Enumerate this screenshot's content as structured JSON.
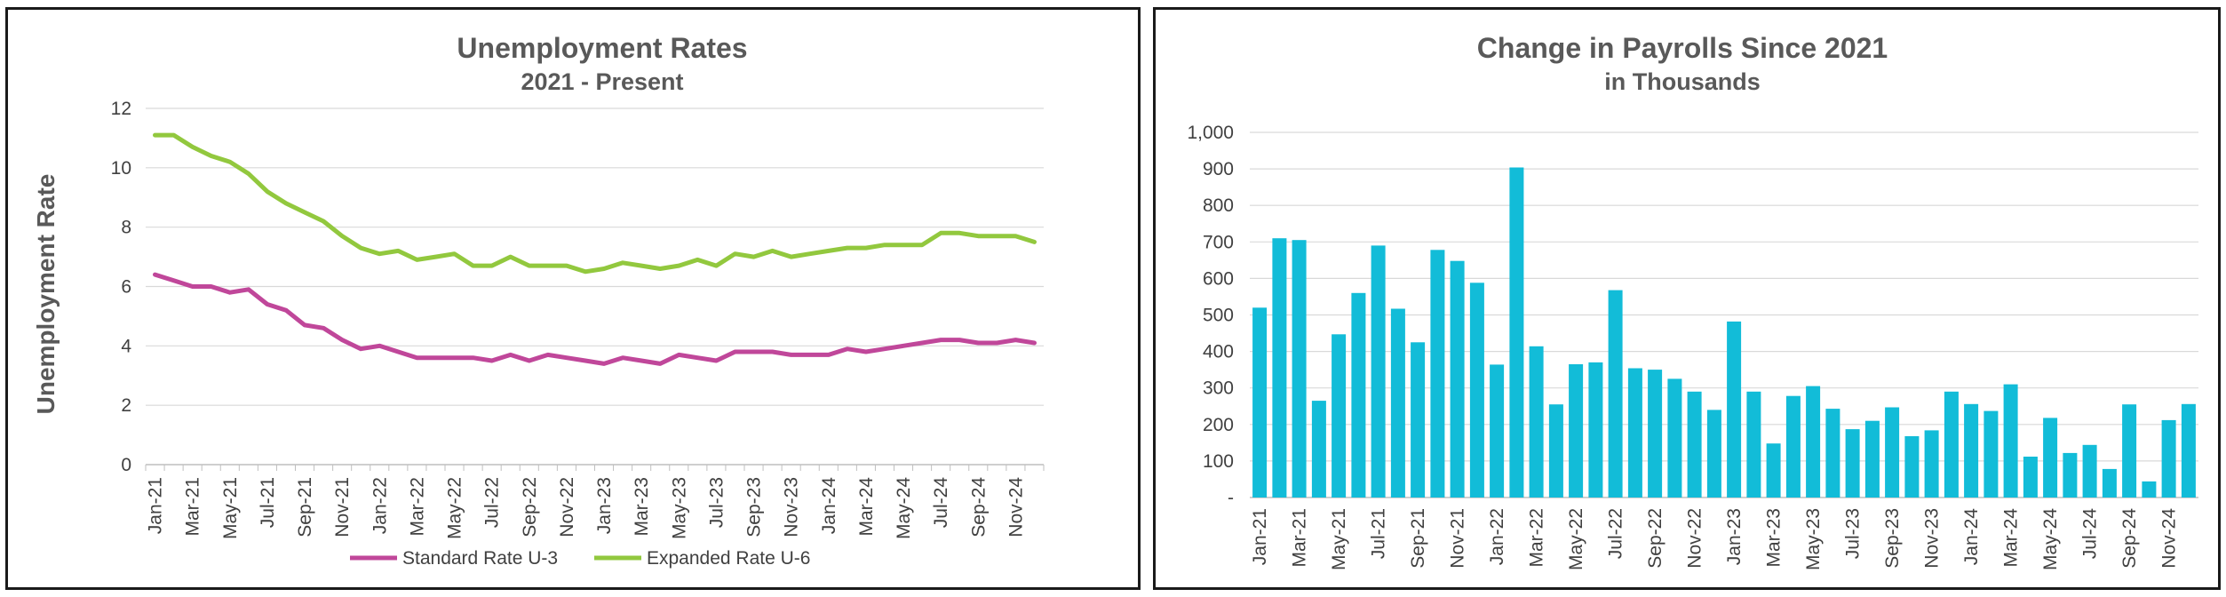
{
  "chart_data": [
    {
      "type": "line",
      "title": "Unemployment Rates",
      "subtitle": "2021 - Present",
      "ylabel": "Unemployment Rate",
      "ylim": [
        0,
        12
      ],
      "yticks": [
        "0",
        "2",
        "4",
        "6",
        "8",
        "10",
        "12"
      ],
      "x": [
        "Jan-21",
        "Feb-21",
        "Mar-21",
        "Apr-21",
        "May-21",
        "Jun-21",
        "Jul-21",
        "Aug-21",
        "Sep-21",
        "Oct-21",
        "Nov-21",
        "Dec-21",
        "Jan-22",
        "Feb-22",
        "Mar-22",
        "Apr-22",
        "May-22",
        "Jun-22",
        "Jul-22",
        "Aug-22",
        "Sep-22",
        "Oct-22",
        "Nov-22",
        "Dec-22",
        "Jan-23",
        "Feb-23",
        "Mar-23",
        "Apr-23",
        "May-23",
        "Jun-23",
        "Jul-23",
        "Aug-23",
        "Sep-23",
        "Oct-23",
        "Nov-23",
        "Dec-23",
        "Jan-24",
        "Feb-24",
        "Mar-24",
        "Apr-24",
        "May-24",
        "Jun-24",
        "Jul-24",
        "Aug-24",
        "Sep-24",
        "Oct-24",
        "Nov-24",
        "Dec-24"
      ],
      "xtick_labels": [
        "Jan-21",
        "Mar-21",
        "May-21",
        "Jul-21",
        "Sep-21",
        "Nov-21",
        "Jan-22",
        "Mar-22",
        "May-22",
        "Jul-22",
        "Sep-22",
        "Nov-22",
        "Jan-23",
        "Mar-23",
        "May-23",
        "Jul-23",
        "Sep-23",
        "Nov-23",
        "Jan-24",
        "Mar-24",
        "May-24",
        "Jul-24",
        "Sep-24",
        "Nov-24"
      ],
      "grid": true,
      "legend_position": "bottom",
      "series": [
        {
          "name": "Standard Rate U-3",
          "color": "#C0479A",
          "values": [
            6.4,
            6.2,
            6.0,
            6.0,
            5.8,
            5.9,
            5.4,
            5.2,
            4.7,
            4.6,
            4.2,
            3.9,
            4.0,
            3.8,
            3.6,
            3.6,
            3.6,
            3.6,
            3.5,
            3.7,
            3.5,
            3.7,
            3.6,
            3.5,
            3.4,
            3.6,
            3.5,
            3.4,
            3.7,
            3.6,
            3.5,
            3.8,
            3.8,
            3.8,
            3.7,
            3.7,
            3.7,
            3.9,
            3.8,
            3.9,
            4.0,
            4.1,
            4.2,
            4.2,
            4.1,
            4.1,
            4.2,
            4.1
          ]
        },
        {
          "name": "Expanded Rate U-6",
          "color": "#92C83E",
          "values": [
            11.1,
            11.1,
            10.7,
            10.4,
            10.2,
            9.8,
            9.2,
            8.8,
            8.5,
            8.2,
            7.7,
            7.3,
            7.1,
            7.2,
            6.9,
            7.0,
            7.1,
            6.7,
            6.7,
            7.0,
            6.7,
            6.7,
            6.7,
            6.5,
            6.6,
            6.8,
            6.7,
            6.6,
            6.7,
            6.9,
            6.7,
            7.1,
            7.0,
            7.2,
            7.0,
            7.1,
            7.2,
            7.3,
            7.3,
            7.4,
            7.4,
            7.4,
            7.8,
            7.8,
            7.7,
            7.7,
            7.7,
            7.5
          ]
        }
      ]
    },
    {
      "type": "bar",
      "title": "Change in Payrolls Since 2021",
      "subtitle": "in Thousands",
      "ylim": [
        0,
        1000
      ],
      "yticks": [
        "-",
        "100",
        "200",
        "300",
        "400",
        "500",
        "600",
        "700",
        "800",
        "900",
        "1,000"
      ],
      "categories": [
        "Jan-21",
        "Feb-21",
        "Mar-21",
        "Apr-21",
        "May-21",
        "Jun-21",
        "Jul-21",
        "Aug-21",
        "Sep-21",
        "Oct-21",
        "Nov-21",
        "Dec-21",
        "Jan-22",
        "Feb-22",
        "Mar-22",
        "Apr-22",
        "May-22",
        "Jun-22",
        "Jul-22",
        "Aug-22",
        "Sep-22",
        "Oct-22",
        "Nov-22",
        "Dec-22",
        "Jan-23",
        "Feb-23",
        "Mar-23",
        "Apr-23",
        "May-23",
        "Jun-23",
        "Jul-23",
        "Aug-23",
        "Sep-23",
        "Oct-23",
        "Nov-23",
        "Dec-23",
        "Jan-24",
        "Feb-24",
        "Mar-24",
        "Apr-24",
        "May-24",
        "Jun-24",
        "Jul-24",
        "Aug-24",
        "Sep-24",
        "Oct-24",
        "Nov-24",
        "Dec-24"
      ],
      "xtick_labels": [
        "Jan-21",
        "Mar-21",
        "May-21",
        "Jul-21",
        "Sep-21",
        "Nov-21",
        "Jan-22",
        "Mar-22",
        "May-22",
        "Jul-22",
        "Sep-22",
        "Nov-22",
        "Jan-23",
        "Mar-23",
        "May-23",
        "Jul-23",
        "Sep-23",
        "Nov-23",
        "Jan-24",
        "Mar-24",
        "May-24",
        "Jul-24",
        "Sep-24",
        "Nov-24"
      ],
      "grid": true,
      "color": "#12BCD8",
      "values": [
        520,
        710,
        705,
        265,
        447,
        560,
        690,
        517,
        425,
        678,
        648,
        588,
        364,
        904,
        414,
        255,
        365,
        370,
        568,
        354,
        350,
        325,
        290,
        240,
        482,
        290,
        148,
        278,
        305,
        243,
        187,
        210,
        247,
        168,
        184,
        290,
        256,
        237,
        310,
        112,
        218,
        122,
        144,
        78,
        255,
        44,
        212,
        256
      ]
    }
  ]
}
